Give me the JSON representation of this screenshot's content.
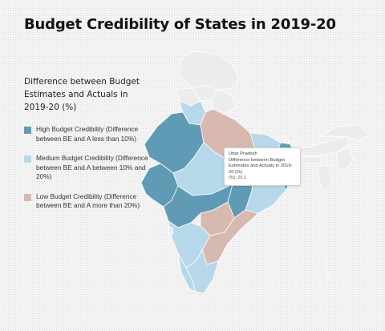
{
  "title": "Budget Credibility of States in 2019-20",
  "legend": {
    "heading": "Difference between Budget Estimates and Actuals in 2019-20 (%)",
    "items": [
      {
        "label": "High Budget Credibility (Difference between BE and A less than 10%)",
        "color": "#5f9bb5"
      },
      {
        "label": "Medium Budget Credibility (Difference between BE and A between 10% and 20%)",
        "color": "#b6d8ea"
      },
      {
        "label": "Low Budget Credibility (Difference between BE and A more than 20%)",
        "color": "#d8b9b0"
      }
    ]
  },
  "no_data_color": "#ececec",
  "tooltip": {
    "state": "Uttar Pradesh",
    "metric": "Difference between Budget Estimates and Actuals in 2019-20 (%)",
    "value": "20.1"
  }
}
